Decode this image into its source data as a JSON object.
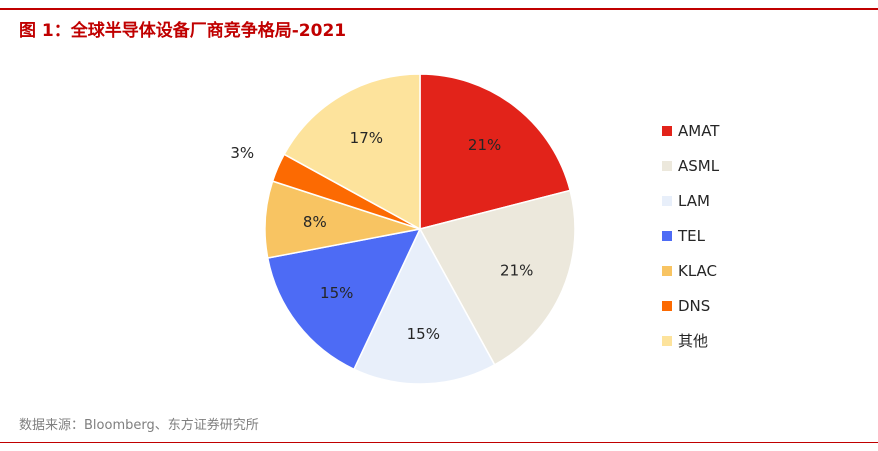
{
  "caption": {
    "figure_label": "图 1：",
    "title": "全球半导体设备厂商竞争格局-2021"
  },
  "source": "数据来源：Bloomberg、东方证券研究所",
  "chart_data": {
    "type": "pie",
    "title": "全球半导体设备厂商竞争格局-2021",
    "legend_position": "right",
    "slices": [
      {
        "label": "AMAT",
        "value": 21,
        "display": "21%",
        "color": "#e2231a"
      },
      {
        "label": "ASML",
        "value": 21,
        "display": "21%",
        "color": "#ece8dc"
      },
      {
        "label": "LAM",
        "value": 15,
        "display": "15%",
        "color": "#e8effa"
      },
      {
        "label": "TEL",
        "value": 15,
        "display": "15%",
        "color": "#4d6bf5"
      },
      {
        "label": "KLAC",
        "value": 8,
        "display": "8%",
        "color": "#f8c462"
      },
      {
        "label": "DNS",
        "value": 3,
        "display": "3%",
        "color": "#fc6a02"
      },
      {
        "label": "其他",
        "value": 17,
        "display": "17%",
        "color": "#fde39c"
      }
    ]
  }
}
